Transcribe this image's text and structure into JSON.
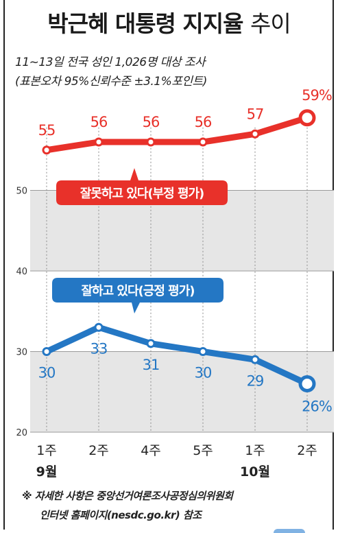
{
  "title_main": "박근혜 대통령 지지율",
  "title_light": "추이",
  "subtitle_1": "11~13일 전국 성인 1,026명 대상 조사",
  "subtitle_2": "(표본오차 95%신뢰수준 ±3.1%포인트)",
  "footnote_1": "※ 자세한 사항은 중앙선거여론조사공정심의위원회",
  "footnote_2": "인터넷 홈페이지(nesdc.go.kr) 참조",
  "colors": {
    "negative": "#e8312a",
    "positive": "#2477c4",
    "band": "#e6e6e6"
  },
  "chart_data": {
    "type": "line",
    "x": [
      "1주",
      "2주",
      "4주",
      "5주",
      "1주",
      "2주"
    ],
    "month_labels": [
      {
        "label": "9월",
        "index": 0
      },
      {
        "label": "10월",
        "index": 4
      }
    ],
    "ylim": [
      20,
      60
    ],
    "yticks": [
      20,
      30,
      40,
      50
    ],
    "series": [
      {
        "name": "잘못하고 있다(부정 평가)",
        "values": [
          55,
          56,
          56,
          56,
          57,
          59
        ],
        "labels": [
          "55",
          "56",
          "56",
          "56",
          "57",
          "59%"
        ]
      },
      {
        "name": "잘하고 있다(긍정 평가)",
        "values": [
          30,
          33,
          31,
          30,
          29,
          26
        ],
        "labels": [
          "30",
          "33",
          "31",
          "30",
          "29",
          "26%"
        ]
      }
    ]
  }
}
